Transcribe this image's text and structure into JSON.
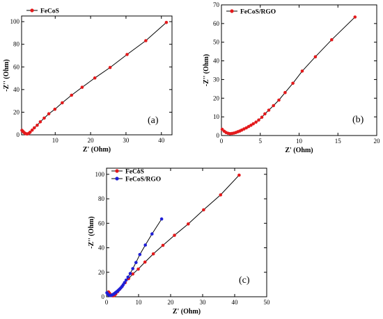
{
  "figure": {
    "title": ""
  },
  "chart_data": [
    {
      "id": "a",
      "type": "line",
      "panel_label": "(a)",
      "xlabel": "Z' (Ohm)",
      "ylabel": "-Z'' (Ohm)",
      "xlim": [
        0.5,
        43
      ],
      "ylim": [
        0,
        105
      ],
      "xticks": [
        10,
        20,
        30,
        40
      ],
      "yticks": [
        0,
        20,
        40,
        60,
        80,
        100
      ],
      "legend_position": "top-left",
      "series": [
        {
          "name": "FeCoS",
          "color": "#e41a1c",
          "x": [
            0.6,
            0.9,
            1.2,
            1.5,
            1.8,
            2.1,
            2.5,
            2.9,
            3.5,
            4.1,
            4.9,
            5.8,
            6.9,
            8.2,
            9.9,
            12.0,
            14.6,
            17.6,
            21.2,
            25.5,
            30.3,
            35.6,
            41.4
          ],
          "y": [
            4.0,
            3.0,
            2.0,
            1.3,
            0.9,
            0.8,
            1.2,
            2.3,
            4.2,
            6.2,
            8.5,
            11.5,
            14.8,
            18.6,
            22.6,
            28.3,
            35.0,
            42.0,
            50.2,
            59.5,
            71.0,
            83.2,
            99.3
          ]
        }
      ]
    },
    {
      "id": "b",
      "type": "line",
      "panel_label": "(b)",
      "xlabel": "Z' (Ohm)",
      "ylabel": "-Z'' (Ohm)",
      "xlim": [
        0,
        20
      ],
      "ylim": [
        0,
        70
      ],
      "xticks": [
        0,
        5,
        10,
        15,
        20
      ],
      "yticks": [
        0,
        10,
        20,
        30,
        40,
        50,
        60,
        70
      ],
      "legend_position": "top-left",
      "series": [
        {
          "name": "FeCoS/RGO",
          "color": "#e41a1c",
          "x": [
            0.1,
            0.35,
            0.6,
            0.85,
            1.1,
            1.35,
            1.6,
            1.85,
            2.1,
            2.35,
            2.6,
            2.9,
            3.2,
            3.5,
            3.8,
            4.1,
            4.45,
            4.8,
            5.2,
            5.6,
            6.1,
            6.7,
            7.4,
            8.2,
            9.2,
            10.4,
            12.1,
            14.2,
            17.2
          ],
          "y": [
            3.3,
            2.3,
            1.6,
            1.2,
            1.0,
            1.1,
            1.3,
            1.6,
            2.0,
            2.4,
            2.9,
            3.5,
            4.1,
            4.8,
            5.5,
            6.3,
            7.2,
            8.3,
            9.8,
            11.6,
            13.6,
            16.0,
            19.0,
            23.0,
            28.0,
            34.5,
            42.2,
            51.3,
            63.5
          ]
        }
      ]
    },
    {
      "id": "c",
      "type": "line",
      "panel_label": "(c)",
      "xlabel": "Z' (Ohm)",
      "ylabel": "-Z'' (Ohm)",
      "xlim": [
        0,
        50
      ],
      "ylim": [
        0,
        105
      ],
      "xticks": [
        0,
        10,
        20,
        30,
        40,
        50
      ],
      "yticks": [
        0,
        20,
        40,
        60,
        80,
        100
      ],
      "legend_position": "top-left",
      "series": [
        {
          "name": "FeCoS",
          "color": "#e41a1c",
          "x": [
            0.6,
            0.9,
            1.2,
            1.5,
            1.8,
            2.1,
            2.5,
            2.9,
            3.5,
            4.1,
            4.9,
            5.8,
            6.9,
            8.2,
            9.9,
            12.0,
            14.6,
            17.6,
            21.2,
            25.5,
            30.3,
            35.6,
            41.4
          ],
          "y": [
            4.0,
            3.0,
            2.0,
            1.3,
            0.9,
            0.8,
            1.2,
            2.3,
            4.2,
            6.2,
            8.5,
            11.5,
            14.8,
            18.6,
            22.6,
            28.3,
            35.0,
            42.0,
            50.2,
            59.5,
            71.0,
            83.2,
            99.3
          ]
        },
        {
          "name": "FeCoS/RGO",
          "color": "#1f1fd6",
          "x": [
            0.1,
            0.35,
            0.6,
            0.85,
            1.1,
            1.35,
            1.6,
            1.85,
            2.1,
            2.35,
            2.6,
            2.9,
            3.2,
            3.5,
            3.8,
            4.1,
            4.45,
            4.8,
            5.2,
            5.6,
            6.1,
            6.7,
            7.4,
            8.2,
            9.2,
            10.4,
            12.1,
            14.2,
            17.2
          ],
          "y": [
            3.3,
            2.3,
            1.6,
            1.2,
            1.0,
            1.1,
            1.3,
            1.6,
            2.0,
            2.4,
            2.9,
            3.5,
            4.1,
            4.8,
            5.5,
            6.3,
            7.2,
            8.3,
            9.8,
            11.6,
            13.6,
            16.0,
            19.0,
            23.0,
            28.0,
            34.5,
            42.2,
            51.3,
            63.5
          ]
        }
      ]
    }
  ]
}
